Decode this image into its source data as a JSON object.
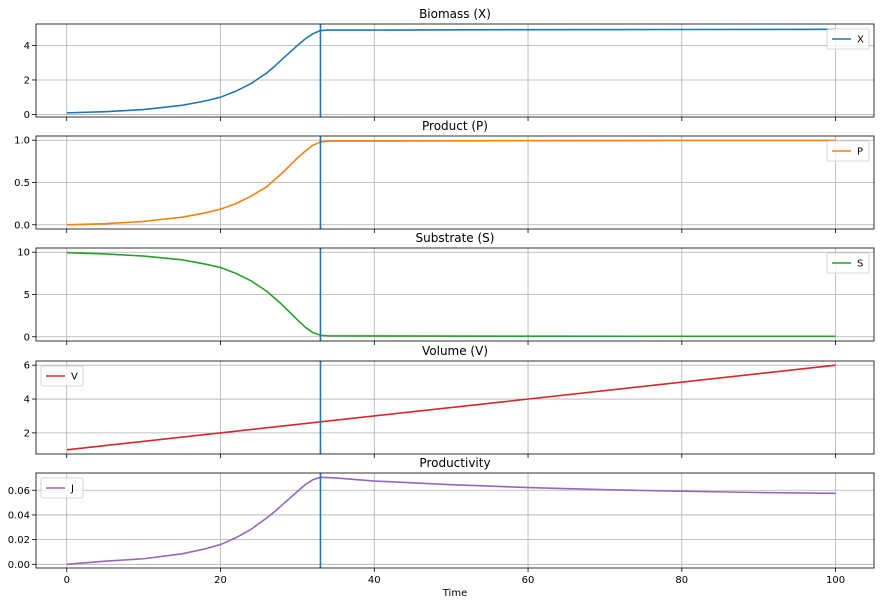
{
  "chart_data": {
    "type": "line",
    "xlabel": "Time",
    "xlim": [
      -4,
      105
    ],
    "xticks": [
      0,
      20,
      40,
      60,
      80,
      100
    ],
    "xtick_labels": [
      "0",
      "20",
      "40",
      "60",
      "80",
      "100"
    ],
    "vline": {
      "x": 33,
      "color": "#1f77b4"
    },
    "grid": true,
    "panels": [
      {
        "title": "Biomass (X)",
        "legend": {
          "label": "X",
          "position": "upper-right"
        },
        "color": "#1f77b4",
        "ylim": [
          -0.15,
          5.25
        ],
        "yticks": [
          0,
          2,
          4
        ],
        "ytick_labels": [
          "0",
          "2",
          "4"
        ],
        "x": [
          0,
          5,
          10,
          15,
          18,
          20,
          22,
          24,
          26,
          27,
          28,
          29,
          30,
          31,
          32,
          33,
          34,
          40,
          60,
          80,
          100
        ],
        "y": [
          0.09,
          0.16,
          0.28,
          0.53,
          0.78,
          1.0,
          1.35,
          1.8,
          2.4,
          2.78,
          3.2,
          3.6,
          4.0,
          4.38,
          4.68,
          4.87,
          4.9,
          4.9,
          4.92,
          4.93,
          4.94
        ]
      },
      {
        "title": "Product (P)",
        "legend": {
          "label": "P",
          "position": "upper-right"
        },
        "color": "#ff7f0e",
        "ylim": [
          -0.05,
          1.05
        ],
        "yticks": [
          0.0,
          0.5,
          1.0
        ],
        "ytick_labels": [
          "0.0",
          "0.5",
          "1.0"
        ],
        "x": [
          0,
          5,
          10,
          15,
          18,
          20,
          22,
          24,
          26,
          27,
          28,
          29,
          30,
          31,
          32,
          33,
          34,
          40,
          60,
          80,
          100
        ],
        "y": [
          0.0,
          0.013,
          0.04,
          0.09,
          0.14,
          0.185,
          0.25,
          0.34,
          0.45,
          0.53,
          0.61,
          0.7,
          0.79,
          0.87,
          0.94,
          0.98,
          0.99,
          0.99,
          0.995,
          0.997,
          0.998
        ]
      },
      {
        "title": "Substrate (S)",
        "legend": {
          "label": "S",
          "position": "upper-right"
        },
        "color": "#2ca02c",
        "ylim": [
          -0.5,
          10.5
        ],
        "yticks": [
          0,
          5,
          10
        ],
        "ytick_labels": [
          "0",
          "5",
          "10"
        ],
        "x": [
          0,
          5,
          10,
          15,
          18,
          20,
          22,
          24,
          26,
          27,
          28,
          29,
          30,
          31,
          32,
          33,
          34,
          40,
          60,
          80,
          100
        ],
        "y": [
          9.95,
          9.8,
          9.55,
          9.1,
          8.6,
          8.2,
          7.5,
          6.6,
          5.4,
          4.6,
          3.8,
          2.9,
          2.0,
          1.15,
          0.5,
          0.18,
          0.12,
          0.1,
          0.07,
          0.06,
          0.05
        ]
      },
      {
        "title": "Volume (V)",
        "legend": {
          "label": "V",
          "position": "upper-left"
        },
        "color": "#d62728",
        "ylim": [
          0.75,
          6.25
        ],
        "yticks": [
          2,
          4,
          6
        ],
        "ytick_labels": [
          "2",
          "4",
          "6"
        ],
        "x": [
          0,
          100
        ],
        "y": [
          1.0,
          6.0
        ]
      },
      {
        "title": "Productivity",
        "legend": {
          "label": "J",
          "position": "upper-left"
        },
        "color": "#9467bd",
        "ylim": [
          -0.003,
          0.074
        ],
        "yticks": [
          0.0,
          0.02,
          0.04,
          0.06
        ],
        "ytick_labels": [
          "0.00",
          "0.02",
          "0.04",
          "0.06"
        ],
        "x": [
          0,
          5,
          10,
          15,
          18,
          20,
          22,
          24,
          26,
          27,
          28,
          29,
          30,
          31,
          32,
          33,
          35,
          40,
          50,
          60,
          70,
          80,
          90,
          100
        ],
        "y": [
          0.0,
          0.0025,
          0.0045,
          0.0085,
          0.0125,
          0.016,
          0.0215,
          0.0285,
          0.0375,
          0.0425,
          0.048,
          0.0535,
          0.059,
          0.0645,
          0.0685,
          0.0705,
          0.07,
          0.0675,
          0.0645,
          0.0622,
          0.0605,
          0.0592,
          0.0582,
          0.0575
        ]
      }
    ]
  }
}
